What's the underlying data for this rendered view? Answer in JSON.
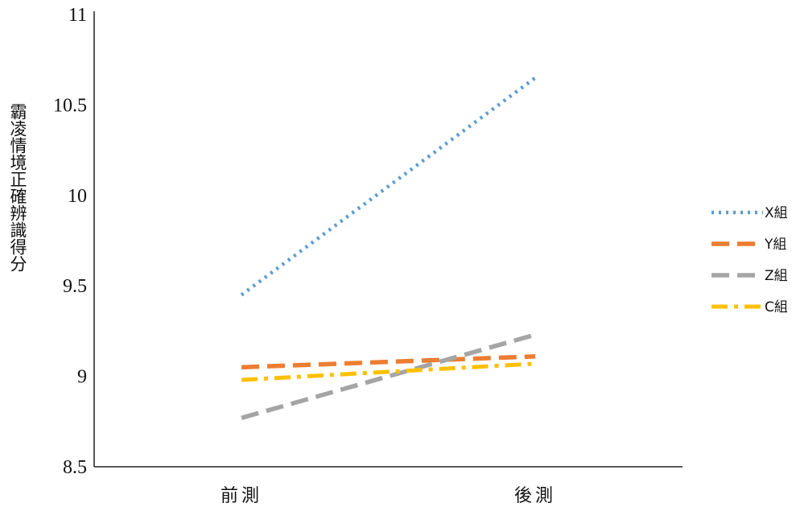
{
  "chart_data": {
    "type": "line",
    "title": "",
    "xlabel": "",
    "ylabel": "霸凌情境正確辨識得分",
    "categories": [
      "前測",
      "後測"
    ],
    "ylim": [
      8.5,
      11
    ],
    "yticks": [
      "8.5",
      "9",
      "9.5",
      "10",
      "10.5",
      "11"
    ],
    "grid": false,
    "legend_position": "right",
    "series": [
      {
        "name": "X組",
        "values": [
          9.45,
          10.65
        ],
        "color": "#5B9BD5",
        "dash": "dotted"
      },
      {
        "name": "Y組",
        "values": [
          9.05,
          9.11
        ],
        "color": "#ED7D31",
        "dash": "dashed"
      },
      {
        "name": "Z組",
        "values": [
          8.77,
          9.23
        ],
        "color": "#A5A5A5",
        "dash": "dashed"
      },
      {
        "name": "C組",
        "values": [
          8.98,
          9.07
        ],
        "color": "#FFC000",
        "dash": "dash-dot"
      }
    ]
  }
}
